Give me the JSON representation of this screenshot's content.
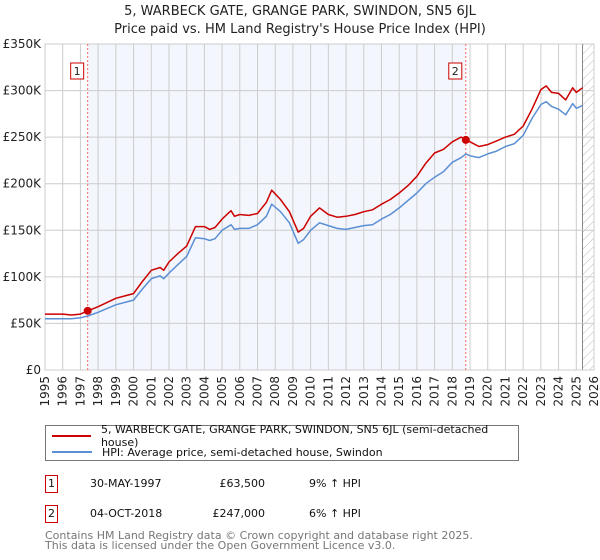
{
  "chart_data": {
    "type": "line",
    "title": "5, WARBECK GATE, GRANGE PARK, SWINDON, SN5 6JL",
    "subtitle": "Price paid vs. HM Land Registry's House Price Index (HPI)",
    "xlim": [
      1995,
      2026
    ],
    "ylim": [
      0,
      350000
    ],
    "y_ticks": [
      0,
      50000,
      100000,
      150000,
      200000,
      250000,
      300000,
      350000
    ],
    "y_tick_labels": [
      "£0",
      "£50K",
      "£100K",
      "£150K",
      "£200K",
      "£250K",
      "£300K",
      "£350K"
    ],
    "x_ticks": [
      "1995",
      "1996",
      "1997",
      "1998",
      "1999",
      "2000",
      "2001",
      "2002",
      "2003",
      "2004",
      "2005",
      "2006",
      "2007",
      "2008",
      "2009",
      "2010",
      "2011",
      "2012",
      "2013",
      "2014",
      "2015",
      "2016",
      "2017",
      "2018",
      "2019",
      "2020",
      "2021",
      "2022",
      "2023",
      "2024",
      "2025",
      "2026"
    ],
    "grid": true,
    "shaded_range": [
      1997.41,
      2018.76
    ],
    "hatched_from": 2025.35,
    "series": [
      {
        "name": "5, WARBECK GATE, GRANGE PARK, SWINDON, SN5 6JL (semi-detached house)",
        "color": "#cc0000",
        "x": [
          1995,
          1996,
          1996.5,
          1997,
          1997.41,
          1998,
          1999,
          2000,
          2000.5,
          2001,
          2001.5,
          2001.7,
          2002,
          2002.5,
          2003,
          2003.5,
          2004,
          2004.3,
          2004.6,
          2005,
          2005.5,
          2005.7,
          2006,
          2006.5,
          2007,
          2007.5,
          2007.8,
          2008.3,
          2008.8,
          2009.3,
          2009.6,
          2010,
          2010.5,
          2011,
          2011.5,
          2012,
          2012.5,
          2013,
          2013.5,
          2014,
          2014.5,
          2015,
          2015.5,
          2016,
          2016.5,
          2017,
          2017.5,
          2018,
          2018.5,
          2018.76,
          2019,
          2019.5,
          2020,
          2020.5,
          2021,
          2021.5,
          2022,
          2022.5,
          2023,
          2023.3,
          2023.6,
          2024,
          2024.4,
          2024.8,
          2025,
          2025.35
        ],
        "values": [
          60000,
          60000,
          59000,
          60000,
          63500,
          68000,
          77000,
          82000,
          95000,
          107000,
          110000,
          107000,
          116000,
          125000,
          133000,
          154000,
          154000,
          151000,
          153000,
          162000,
          171000,
          165000,
          167000,
          166000,
          168000,
          180000,
          193000,
          183000,
          170000,
          148000,
          152000,
          165000,
          174000,
          167000,
          164000,
          165000,
          167000,
          170000,
          172000,
          178000,
          183000,
          190000,
          198000,
          208000,
          222000,
          233000,
          237000,
          245000,
          250000,
          247000,
          245000,
          240000,
          242000,
          246000,
          250000,
          253000,
          262000,
          280000,
          301000,
          305000,
          298000,
          297000,
          290000,
          303000,
          298000,
          303000
        ]
      },
      {
        "name": "HPI: Average price, semi-detached house, Swindon",
        "color": "#5b8fd4",
        "x": [
          1995,
          1996,
          1996.5,
          1997,
          1997.41,
          1998,
          1999,
          2000,
          2000.5,
          2001,
          2001.5,
          2001.7,
          2002,
          2002.5,
          2003,
          2003.5,
          2004,
          2004.3,
          2004.6,
          2005,
          2005.5,
          2005.7,
          2006,
          2006.5,
          2007,
          2007.5,
          2007.8,
          2008.3,
          2008.8,
          2009.3,
          2009.6,
          2010,
          2010.5,
          2011,
          2011.5,
          2012,
          2012.5,
          2013,
          2013.5,
          2014,
          2014.5,
          2015,
          2015.5,
          2016,
          2016.5,
          2017,
          2017.5,
          2018,
          2018.5,
          2018.76,
          2019,
          2019.5,
          2020,
          2020.5,
          2021,
          2021.5,
          2022,
          2022.5,
          2023,
          2023.3,
          2023.6,
          2024,
          2024.4,
          2024.8,
          2025,
          2025.35
        ],
        "values": [
          55000,
          55000,
          55000,
          56000,
          58000,
          62000,
          70000,
          75000,
          87000,
          98000,
          101000,
          98000,
          104000,
          113000,
          122000,
          142000,
          141000,
          139000,
          141000,
          150000,
          156000,
          151000,
          152000,
          152000,
          156000,
          165000,
          178000,
          170000,
          158000,
          136000,
          140000,
          150000,
          158000,
          155000,
          152000,
          151000,
          153000,
          155000,
          156000,
          162000,
          167000,
          174000,
          182000,
          190000,
          200000,
          207000,
          213000,
          223000,
          228000,
          232000,
          230000,
          228000,
          232000,
          235000,
          240000,
          243000,
          252000,
          270000,
          285000,
          288000,
          283000,
          280000,
          274000,
          286000,
          281000,
          284000
        ]
      }
    ],
    "markers": [
      {
        "label": "1",
        "x": 1997.41,
        "y": 63500
      },
      {
        "label": "2",
        "x": 2018.76,
        "y": 247000
      }
    ]
  },
  "legend": {
    "property": "5, WARBECK GATE, GRANGE PARK, SWINDON, SN5 6JL (semi-detached house)",
    "hpi": "HPI: Average price, semi-detached house, Swindon"
  },
  "sales": [
    {
      "num": "1",
      "date": "30-MAY-1997",
      "price": "£63,500",
      "hpi": "9% ↑ HPI"
    },
    {
      "num": "2",
      "date": "04-OCT-2018",
      "price": "£247,000",
      "hpi": "6% ↑ HPI"
    }
  ],
  "footer": {
    "line1": "Contains HM Land Registry data © Crown copyright and database right 2025.",
    "line2": "This data is licensed under the Open Government Licence v3.0."
  }
}
